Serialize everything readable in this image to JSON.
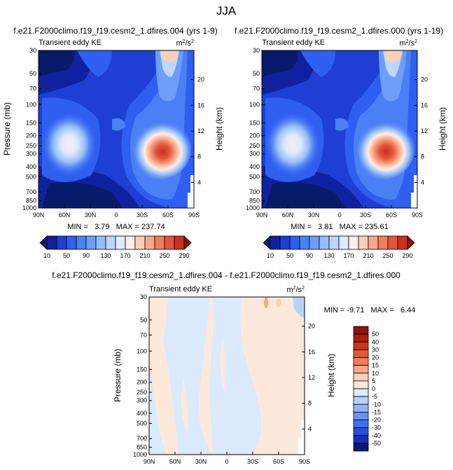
{
  "page_title": "JJA",
  "chart_data": [
    {
      "type": "heatmap",
      "title": "f.e21.F2000climo.f19_f19.cesm2_1.dfires.004 (yrs 1-9)",
      "left_label": "Transient eddy KE",
      "right_label": "m²/s²",
      "units_base": "m",
      "units_sup": "2",
      "units_mid": "/s",
      "ylabel": "Pressure (mb)",
      "y2label": "Height (km)",
      "x_ticks": [
        "90N",
        "60N",
        "30N",
        "0",
        "30S",
        "60S",
        "90S"
      ],
      "y_ticks": [
        "30",
        "50",
        "70",
        "100",
        "150",
        "200",
        "250",
        "300",
        "400",
        "500",
        "700",
        "850",
        "1000"
      ],
      "y2_ticks": [
        "20",
        "16",
        "12",
        "8",
        "4"
      ],
      "xlim": [
        90,
        -90
      ],
      "ylim": [
        1000,
        30
      ],
      "y_scale": "log",
      "stats": "MIN =   3.79   MAX = 237.74",
      "min": 3.79,
      "max": 237.74
    },
    {
      "type": "heatmap",
      "title": "f.e21.F2000climo.f19_f19.cesm2_1.dfires.000 (yrs 1-19)",
      "left_label": "Transient eddy KE",
      "right_label": "m²/s²",
      "units_base": "m",
      "units_sup": "2",
      "units_mid": "/s",
      "y2label": "Height (km)",
      "x_ticks": [
        "90N",
        "60N",
        "30N",
        "0",
        "30S",
        "60S",
        "90S"
      ],
      "y_ticks": [
        "30",
        "50",
        "70",
        "100",
        "150",
        "200",
        "250",
        "300",
        "400",
        "500",
        "700",
        "850",
        "1000"
      ],
      "y2_ticks": [
        "20",
        "16",
        "12",
        "8",
        "4"
      ],
      "xlim": [
        90,
        -90
      ],
      "ylim": [
        1000,
        30
      ],
      "y_scale": "log",
      "stats": "MIN =   3.81   MAX = 235.61",
      "min": 3.81,
      "max": 235.61
    },
    {
      "type": "heatmap",
      "title": "f.e21.F2000climo.f19_f19.cesm2_1.dfires.004 - f.e21.F2000climo.f19_f19.cesm2_1.dfires.000",
      "left_label": "Transient eddy KE",
      "right_label": "m²/s²",
      "units_base": "m",
      "units_sup": "2",
      "units_mid": "/s",
      "ylabel": "Pressure (mb)",
      "y2label": "Height (km)",
      "x_ticks": [
        "90N",
        "60N",
        "30N",
        "0",
        "30S",
        "60S",
        "90S"
      ],
      "y_ticks": [
        "30",
        "50",
        "70",
        "100",
        "150",
        "200",
        "250",
        "300",
        "400",
        "500",
        "700",
        "850",
        "1000"
      ],
      "y2_ticks": [
        "20",
        "16",
        "12",
        "8",
        "4"
      ],
      "xlim": [
        90,
        -90
      ],
      "ylim": [
        1000,
        30
      ],
      "y_scale": "log",
      "stats": "MIN = -9.71   MAX =   6.44",
      "min": -9.71,
      "max": 6.44
    }
  ],
  "colorbar_top": {
    "labels": [
      "10",
      "50",
      "90",
      "130",
      "170",
      "210",
      "250",
      "290"
    ],
    "levels": [
      10,
      30,
      50,
      70,
      90,
      110,
      130,
      150,
      170,
      190,
      210,
      230,
      250,
      270,
      290
    ],
    "colors": [
      "#081b6b",
      "#1021a0",
      "#1d3fd4",
      "#2f5ff0",
      "#4a7ff6",
      "#6d9ef8",
      "#94bdfa",
      "#bdd6fb",
      "#dfeafd",
      "#fdeee6",
      "#fcd0b8",
      "#f8a888",
      "#f07d5b",
      "#e2553a",
      "#c8311f",
      "#8e1208"
    ]
  },
  "colorbar_diff": {
    "labels": [
      "50",
      "40",
      "30",
      "20",
      "15",
      "10",
      "5",
      "0",
      "-5",
      "-10",
      "-15",
      "-20",
      "-30",
      "-40",
      "-50"
    ],
    "colors": [
      "#8e1208",
      "#b01c0d",
      "#cc3419",
      "#e35a36",
      "#f07e5c",
      "#f8a889",
      "#fcd0b8",
      "#fde9dc",
      "#dbeafc",
      "#b7d2fa",
      "#8fb5f7",
      "#6892f3",
      "#4270ec",
      "#2a4fd6",
      "#1730b0",
      "#0a1a78"
    ]
  }
}
